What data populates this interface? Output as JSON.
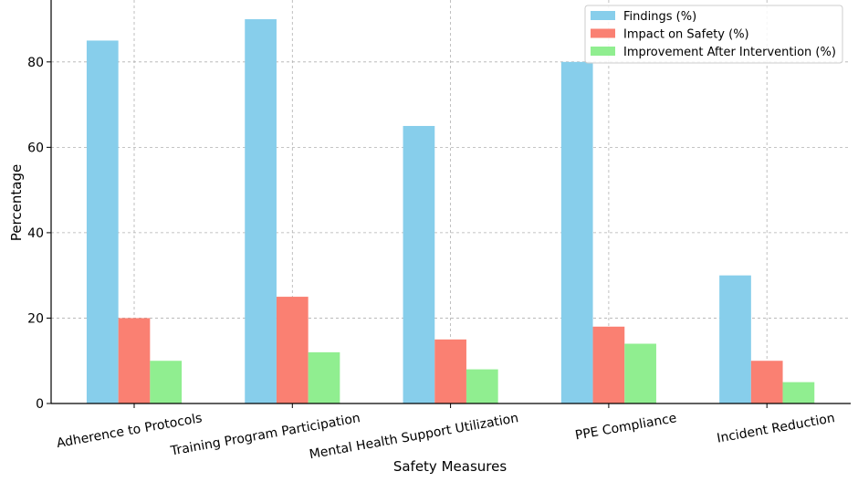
{
  "chart_data": {
    "type": "bar",
    "xlabel": "Safety Measures",
    "ylabel": "Percentage",
    "categories": [
      "Adherence to Protocols",
      "Training Program Participation",
      "Mental Health Support Utilization",
      "PPE Compliance",
      "Incident Reduction"
    ],
    "series": [
      {
        "name": "Findings (%)",
        "color": "#87CEEB",
        "values": [
          85,
          90,
          65,
          80,
          30
        ]
      },
      {
        "name": "Impact on Safety (%)",
        "color": "#FA8072",
        "values": [
          20,
          25,
          15,
          18,
          10
        ]
      },
      {
        "name": "Improvement After Intervention (%)",
        "color": "#90EE90",
        "values": [
          10,
          12,
          8,
          14,
          5
        ]
      }
    ],
    "yticks": [
      0,
      20,
      40,
      60,
      80
    ],
    "ylim": [
      0,
      94.5
    ],
    "grid": true,
    "legend": "top-right"
  }
}
